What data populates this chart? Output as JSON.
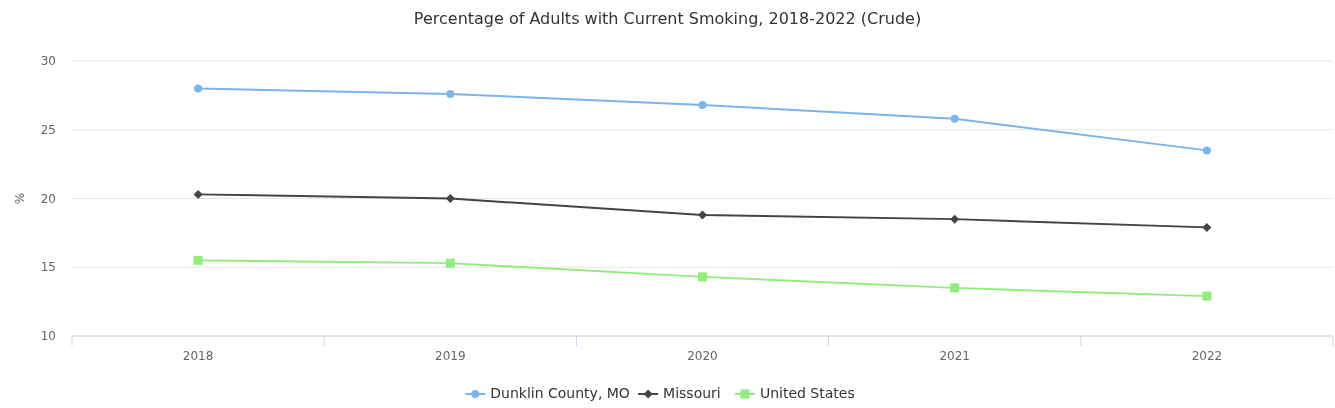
{
  "chart_data": {
    "type": "line",
    "title": "Percentage of Adults with Current Smoking, 2018-2022 (Crude)",
    "ylabel": "%",
    "categories": [
      "2018",
      "2019",
      "2020",
      "2021",
      "2022"
    ],
    "series": [
      {
        "name": "Dunklin County, MO",
        "color": "#7cb5ec",
        "marker": "circle",
        "values": [
          28.0,
          27.6,
          26.8,
          25.8,
          23.5
        ]
      },
      {
        "name": "Missouri",
        "color": "#434348",
        "marker": "diamond",
        "values": [
          20.3,
          20.0,
          18.8,
          18.5,
          17.9
        ]
      },
      {
        "name": "United States",
        "color": "#90ed7d",
        "marker": "square",
        "values": [
          15.5,
          15.3,
          14.3,
          13.5,
          12.9
        ]
      }
    ],
    "ylim": [
      10,
      30
    ],
    "yticks": [
      10,
      15,
      20,
      25,
      30
    ],
    "grid": "y",
    "legend": "bottom",
    "line_style": "solid"
  }
}
